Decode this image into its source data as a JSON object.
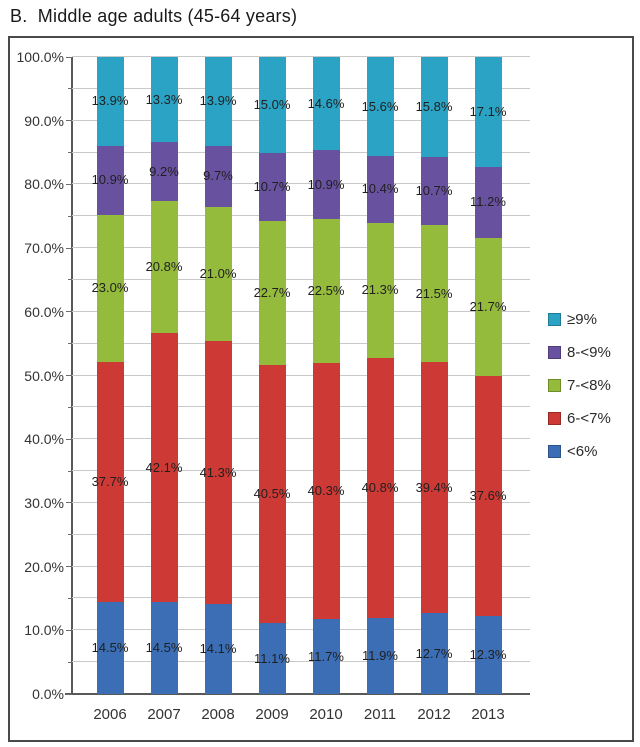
{
  "title": "B.  Middle age adults (45-64 years)",
  "colors": {
    "grid": "#C9C9C9",
    "axis": "#595959",
    "tick_text": "#333333",
    "data_label_text": "#1F1F1F",
    "frame_border": "#4A4A4A",
    "background": "#FFFFFF"
  },
  "chart_data": {
    "type": "bar",
    "stacked": true,
    "title": "B.  Middle age adults (45-64 years)",
    "categories": [
      "2006",
      "2007",
      "2008",
      "2009",
      "2010",
      "2011",
      "2012",
      "2013"
    ],
    "series": [
      {
        "name": "<6%",
        "color": "#3B6EB5",
        "values": [
          14.5,
          14.5,
          14.1,
          11.1,
          11.7,
          11.9,
          12.7,
          12.3
        ]
      },
      {
        "name": "6-<7%",
        "color": "#CD3A35",
        "values": [
          37.7,
          42.1,
          41.3,
          40.5,
          40.3,
          40.8,
          39.4,
          37.6
        ]
      },
      {
        "name": "7-<8%",
        "color": "#95BB3D",
        "values": [
          23.0,
          20.8,
          21.0,
          22.7,
          22.5,
          21.3,
          21.5,
          21.7
        ]
      },
      {
        "name": "8-<9%",
        "color": "#6852A0",
        "values": [
          10.9,
          9.2,
          9.7,
          10.7,
          10.9,
          10.4,
          10.7,
          11.2
        ]
      },
      {
        "name": "≥9%",
        "color": "#2BA3C4",
        "values": [
          13.9,
          13.3,
          13.9,
          15.0,
          14.6,
          15.6,
          15.8,
          17.1
        ]
      }
    ],
    "legend_order": [
      4,
      3,
      2,
      1,
      0
    ],
    "legend_position": "right",
    "ylim": [
      0,
      100
    ],
    "y_ticks": [
      "100.0%",
      "90.0%",
      "80.0%",
      "70.0%",
      "60.0%",
      "50.0%",
      "40.0%",
      "30.0%",
      "20.0%",
      "10.0%",
      "0.0%"
    ],
    "grid": "horizontal every 5%",
    "label_format": "one-decimal percent"
  }
}
